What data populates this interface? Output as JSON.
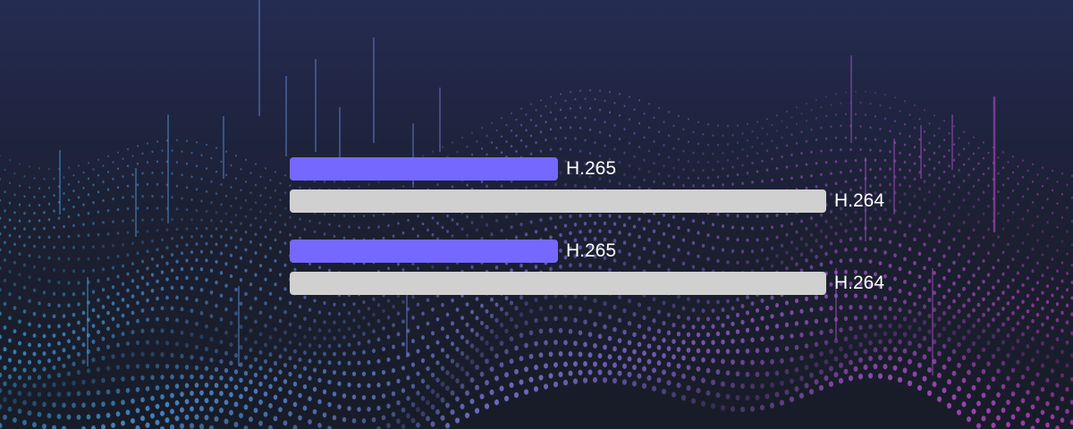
{
  "colors": {
    "bg_top": "#252c52",
    "bg_bottom": "#181c28",
    "h265": "#7468ff",
    "h264": "#d0d0d0",
    "dots_left": "#3aa8e0",
    "dots_right": "#c040c8"
  },
  "chart_data": {
    "type": "bar",
    "orientation": "horizontal",
    "groups": [
      {
        "bars": [
          {
            "label": "H.265",
            "value": 50
          },
          {
            "label": "H.264",
            "value": 100
          }
        ]
      },
      {
        "bars": [
          {
            "label": "H.265",
            "value": 50
          },
          {
            "label": "H.264",
            "value": 100
          }
        ]
      }
    ],
    "xlim": [
      0,
      100
    ],
    "grid": false,
    "legend": "none"
  }
}
